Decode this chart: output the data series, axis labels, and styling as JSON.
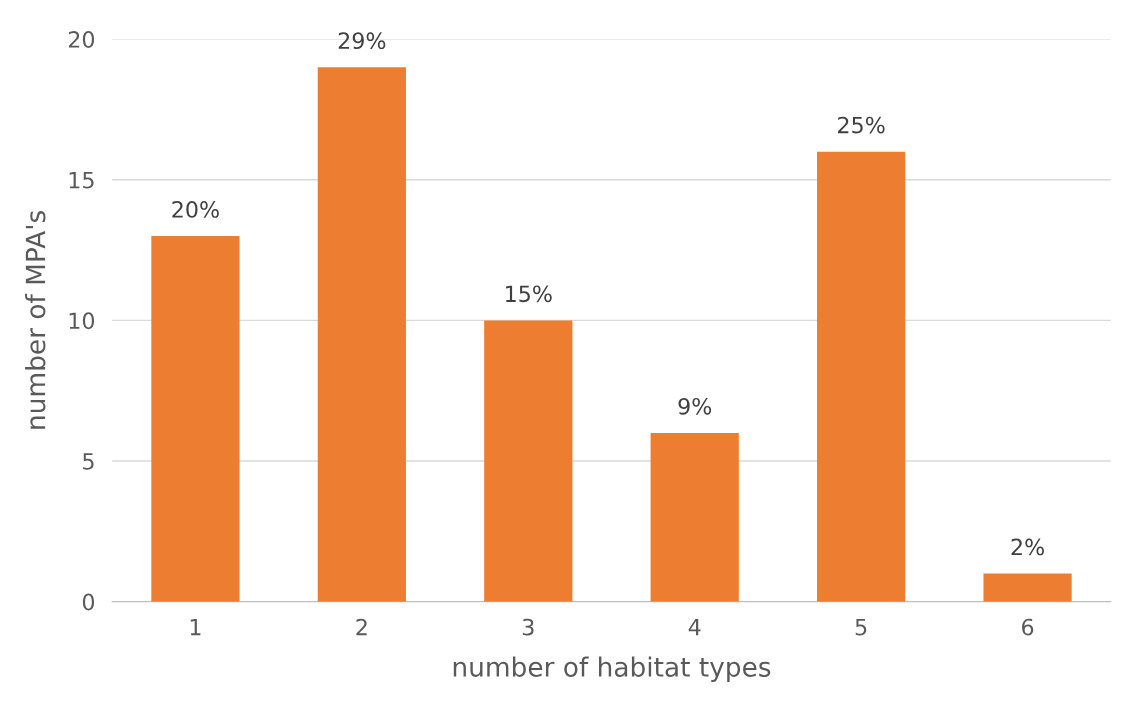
{
  "chart_data": {
    "type": "bar",
    "xlabel": "number of habitat types",
    "ylabel": "number of MPA's",
    "categories": [
      "1",
      "2",
      "3",
      "4",
      "5",
      "6"
    ],
    "values": [
      13,
      19,
      10,
      6,
      16,
      1
    ],
    "annotations": [
      {
        "text": "20%",
        "x": "1",
        "y": 13
      },
      {
        "text": "29%",
        "x": "2",
        "y": 19
      },
      {
        "text": "15%",
        "x": "3",
        "y": 10
      },
      {
        "text": "9%",
        "x": "4",
        "y": 6
      },
      {
        "text": "25%",
        "x": "5",
        "y": 16
      },
      {
        "text": "2%",
        "x": "6",
        "y": 1
      }
    ],
    "color": "#ed7d31",
    "ylim": [
      0,
      20
    ],
    "yticks": [
      0,
      5,
      10,
      15,
      20
    ],
    "grid": "y",
    "legend": false
  }
}
